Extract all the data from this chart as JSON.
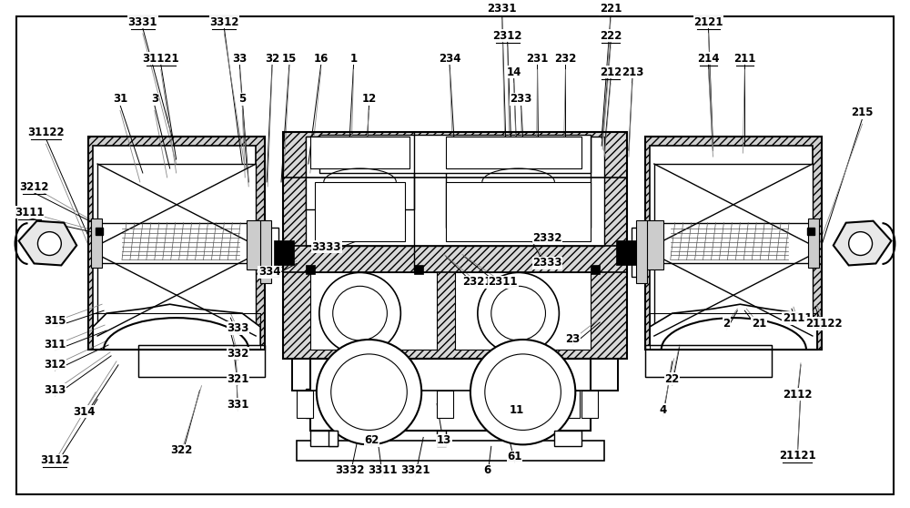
{
  "bg_color": "#ffffff",
  "fig_width": 10.0,
  "fig_height": 5.58,
  "labels_top_left": [
    [
      "31122",
      48,
      408
    ],
    [
      "3331",
      155,
      530
    ],
    [
      "31121",
      175,
      490
    ],
    [
      "3312",
      245,
      530
    ],
    [
      "33",
      262,
      490
    ],
    [
      "32",
      298,
      490
    ],
    [
      "15",
      317,
      490
    ],
    [
      "16",
      352,
      490
    ],
    [
      "1",
      388,
      490
    ],
    [
      "31",
      130,
      445
    ],
    [
      "3",
      168,
      445
    ],
    [
      "5",
      265,
      445
    ],
    [
      "12",
      405,
      445
    ]
  ],
  "labels_top_right": [
    [
      "2331",
      552,
      545
    ],
    [
      "234",
      494,
      490
    ],
    [
      "2312",
      558,
      515
    ],
    [
      "14",
      565,
      475
    ],
    [
      "231",
      591,
      490
    ],
    [
      "232",
      622,
      490
    ],
    [
      "233",
      573,
      445
    ],
    [
      "221",
      672,
      545
    ],
    [
      "222",
      672,
      515
    ],
    [
      "212",
      672,
      475
    ],
    [
      "213",
      696,
      475
    ],
    [
      "2121",
      780,
      530
    ],
    [
      "214",
      780,
      490
    ],
    [
      "211",
      820,
      490
    ],
    [
      "215",
      950,
      430
    ]
  ],
  "labels_left": [
    [
      "3212",
      35,
      348
    ],
    [
      "3111",
      30,
      320
    ]
  ],
  "labels_right": [],
  "labels_bottom_left": [
    [
      "315",
      58,
      200
    ],
    [
      "311",
      58,
      174
    ],
    [
      "312",
      58,
      152
    ],
    [
      "313",
      58,
      124
    ],
    [
      "314",
      90,
      100
    ],
    [
      "3112",
      58,
      46
    ],
    [
      "333",
      260,
      192
    ],
    [
      "332",
      260,
      164
    ],
    [
      "321",
      260,
      136
    ],
    [
      "331",
      260,
      108
    ],
    [
      "322",
      198,
      57
    ],
    [
      "334",
      295,
      254
    ]
  ],
  "labels_bottom_center": [
    [
      "3333",
      358,
      282
    ],
    [
      "3332",
      384,
      35
    ],
    [
      "3311",
      420,
      35
    ],
    [
      "3321",
      456,
      35
    ],
    [
      "62",
      408,
      68
    ],
    [
      "13",
      488,
      68
    ],
    [
      "6",
      536,
      35
    ],
    [
      "61",
      566,
      50
    ],
    [
      "11",
      568,
      102
    ]
  ],
  "labels_bottom_right": [
    [
      "2321",
      525,
      243
    ],
    [
      "2311",
      553,
      243
    ],
    [
      "2332",
      602,
      292
    ],
    [
      "2333",
      602,
      264
    ],
    [
      "23",
      630,
      180
    ],
    [
      "4",
      730,
      102
    ],
    [
      "22",
      740,
      136
    ],
    [
      "2",
      800,
      197
    ],
    [
      "21",
      836,
      197
    ],
    [
      "2111",
      878,
      203
    ],
    [
      "21122",
      908,
      197
    ],
    [
      "2112",
      878,
      119
    ],
    [
      "21121",
      878,
      51
    ]
  ]
}
